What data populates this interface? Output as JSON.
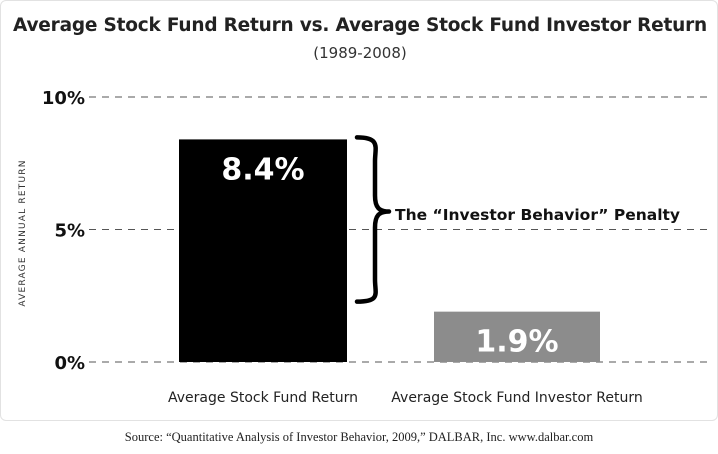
{
  "chart_data": {
    "type": "bar",
    "title": "Average Stock Fund Return vs. Average Stock Fund Investor Return",
    "subtitle": "(1989-2008)",
    "ylabel": "AVERAGE ANNUAL RETURN",
    "xlabel": "",
    "ylim": [
      0,
      10
    ],
    "yticks": [
      {
        "value": 0,
        "label": "0%"
      },
      {
        "value": 5,
        "label": "5%"
      },
      {
        "value": 10,
        "label": "10%"
      }
    ],
    "grid": true,
    "categories": [
      "Average Stock Fund Return",
      "Average Stock Fund Investor Return"
    ],
    "values": [
      8.4,
      1.9
    ],
    "data_labels": [
      "8.4%",
      "1.9%"
    ],
    "colors": [
      "#000000",
      "#8c8c8c"
    ],
    "annotation": "The “Investor Behavior” Penalty"
  },
  "source": "Source: “Quantitative Analysis of Investor Behavior, 2009,” DALBAR, Inc. www.dalbar.com"
}
